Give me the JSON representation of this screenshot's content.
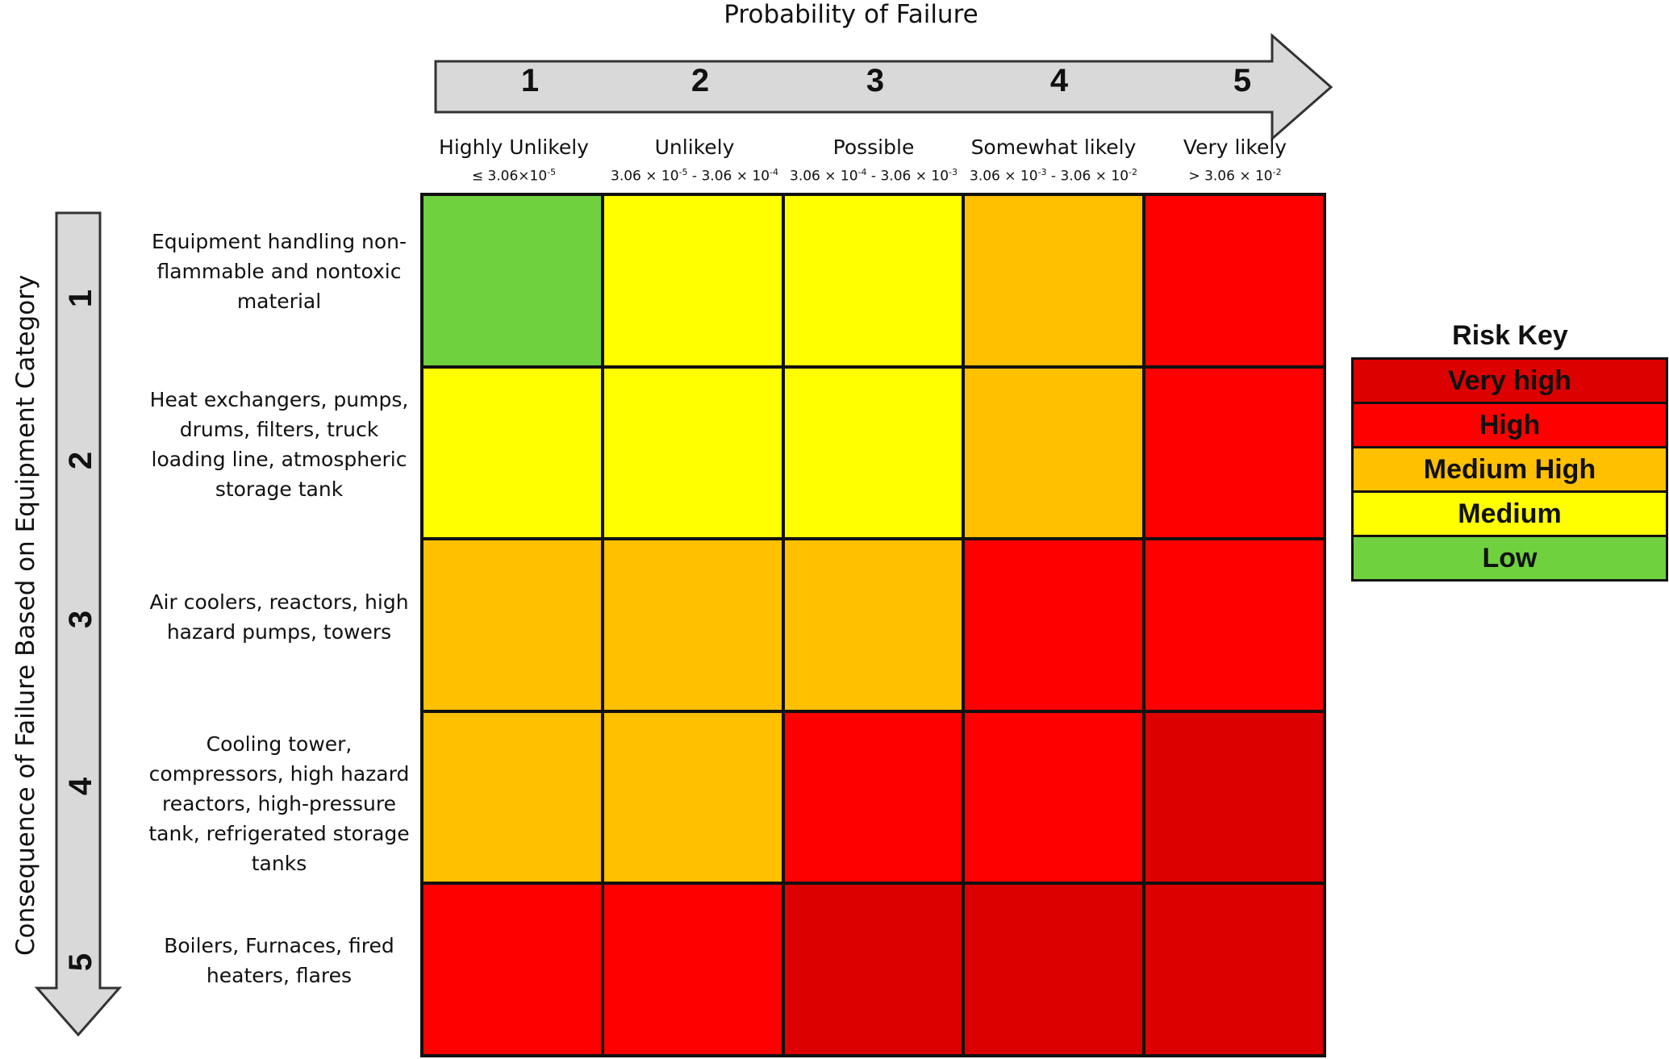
{
  "x_axis": {
    "title": "Probability of Failure",
    "numbers": [
      "1",
      "2",
      "3",
      "4",
      "5"
    ],
    "columns": [
      {
        "label": "Highly Unlikely",
        "range": "≤ 3.06×10<sup>-5</sup>",
        "range_text": "≤ 3.06×10-5"
      },
      {
        "label": "Unlikely",
        "range_text": "3.06 × 10-5 - 3.06 × 10-4"
      },
      {
        "label": "Possible",
        "range_text": "3.06 × 10-4 - 3.06 × 10-3"
      },
      {
        "label": "Somewhat likely",
        "range_text": "3.06 × 10-3 - 3.06 × 10-2"
      },
      {
        "label": "Very likely",
        "range_text": "> 3.06 × 10-2"
      }
    ]
  },
  "y_axis": {
    "title": "Consequence of Failure Based on Equipment Category",
    "numbers": [
      "1",
      "2",
      "3",
      "4",
      "5"
    ],
    "rows": [
      "Equipment handling non-flammable and nontoxic material",
      "Heat exchangers, pumps, drums, filters, truck loading line, atmospheric storage tank",
      "Air coolers, reactors, high hazard pumps, towers",
      "Cooling tower, compressors, high hazard reactors, high-pressure tank, refrigerated storage tanks",
      "Boilers, Furnaces, fired heaters, flares"
    ]
  },
  "risk_levels": {
    "very_high": "#dc0000",
    "high": "#fe0000",
    "medium_high": "#ffc000",
    "medium": "#ffff00",
    "low": "#6fd13e"
  },
  "matrix": [
    [
      "low",
      "medium",
      "medium",
      "medium_high",
      "high"
    ],
    [
      "medium",
      "medium",
      "medium",
      "medium_high",
      "high"
    ],
    [
      "medium_high",
      "medium_high",
      "medium_high",
      "high",
      "high"
    ],
    [
      "medium_high",
      "medium_high",
      "high",
      "high",
      "very_high"
    ],
    [
      "high",
      "high",
      "very_high",
      "very_high",
      "very_high"
    ]
  ],
  "risk_key": {
    "title": "Risk Key",
    "items": [
      {
        "level": "very_high",
        "label": "Very high"
      },
      {
        "level": "high",
        "label": "High"
      },
      {
        "level": "medium_high",
        "label": "Medium High"
      },
      {
        "level": "medium",
        "label": "Medium"
      },
      {
        "level": "low",
        "label": "Low"
      }
    ]
  }
}
